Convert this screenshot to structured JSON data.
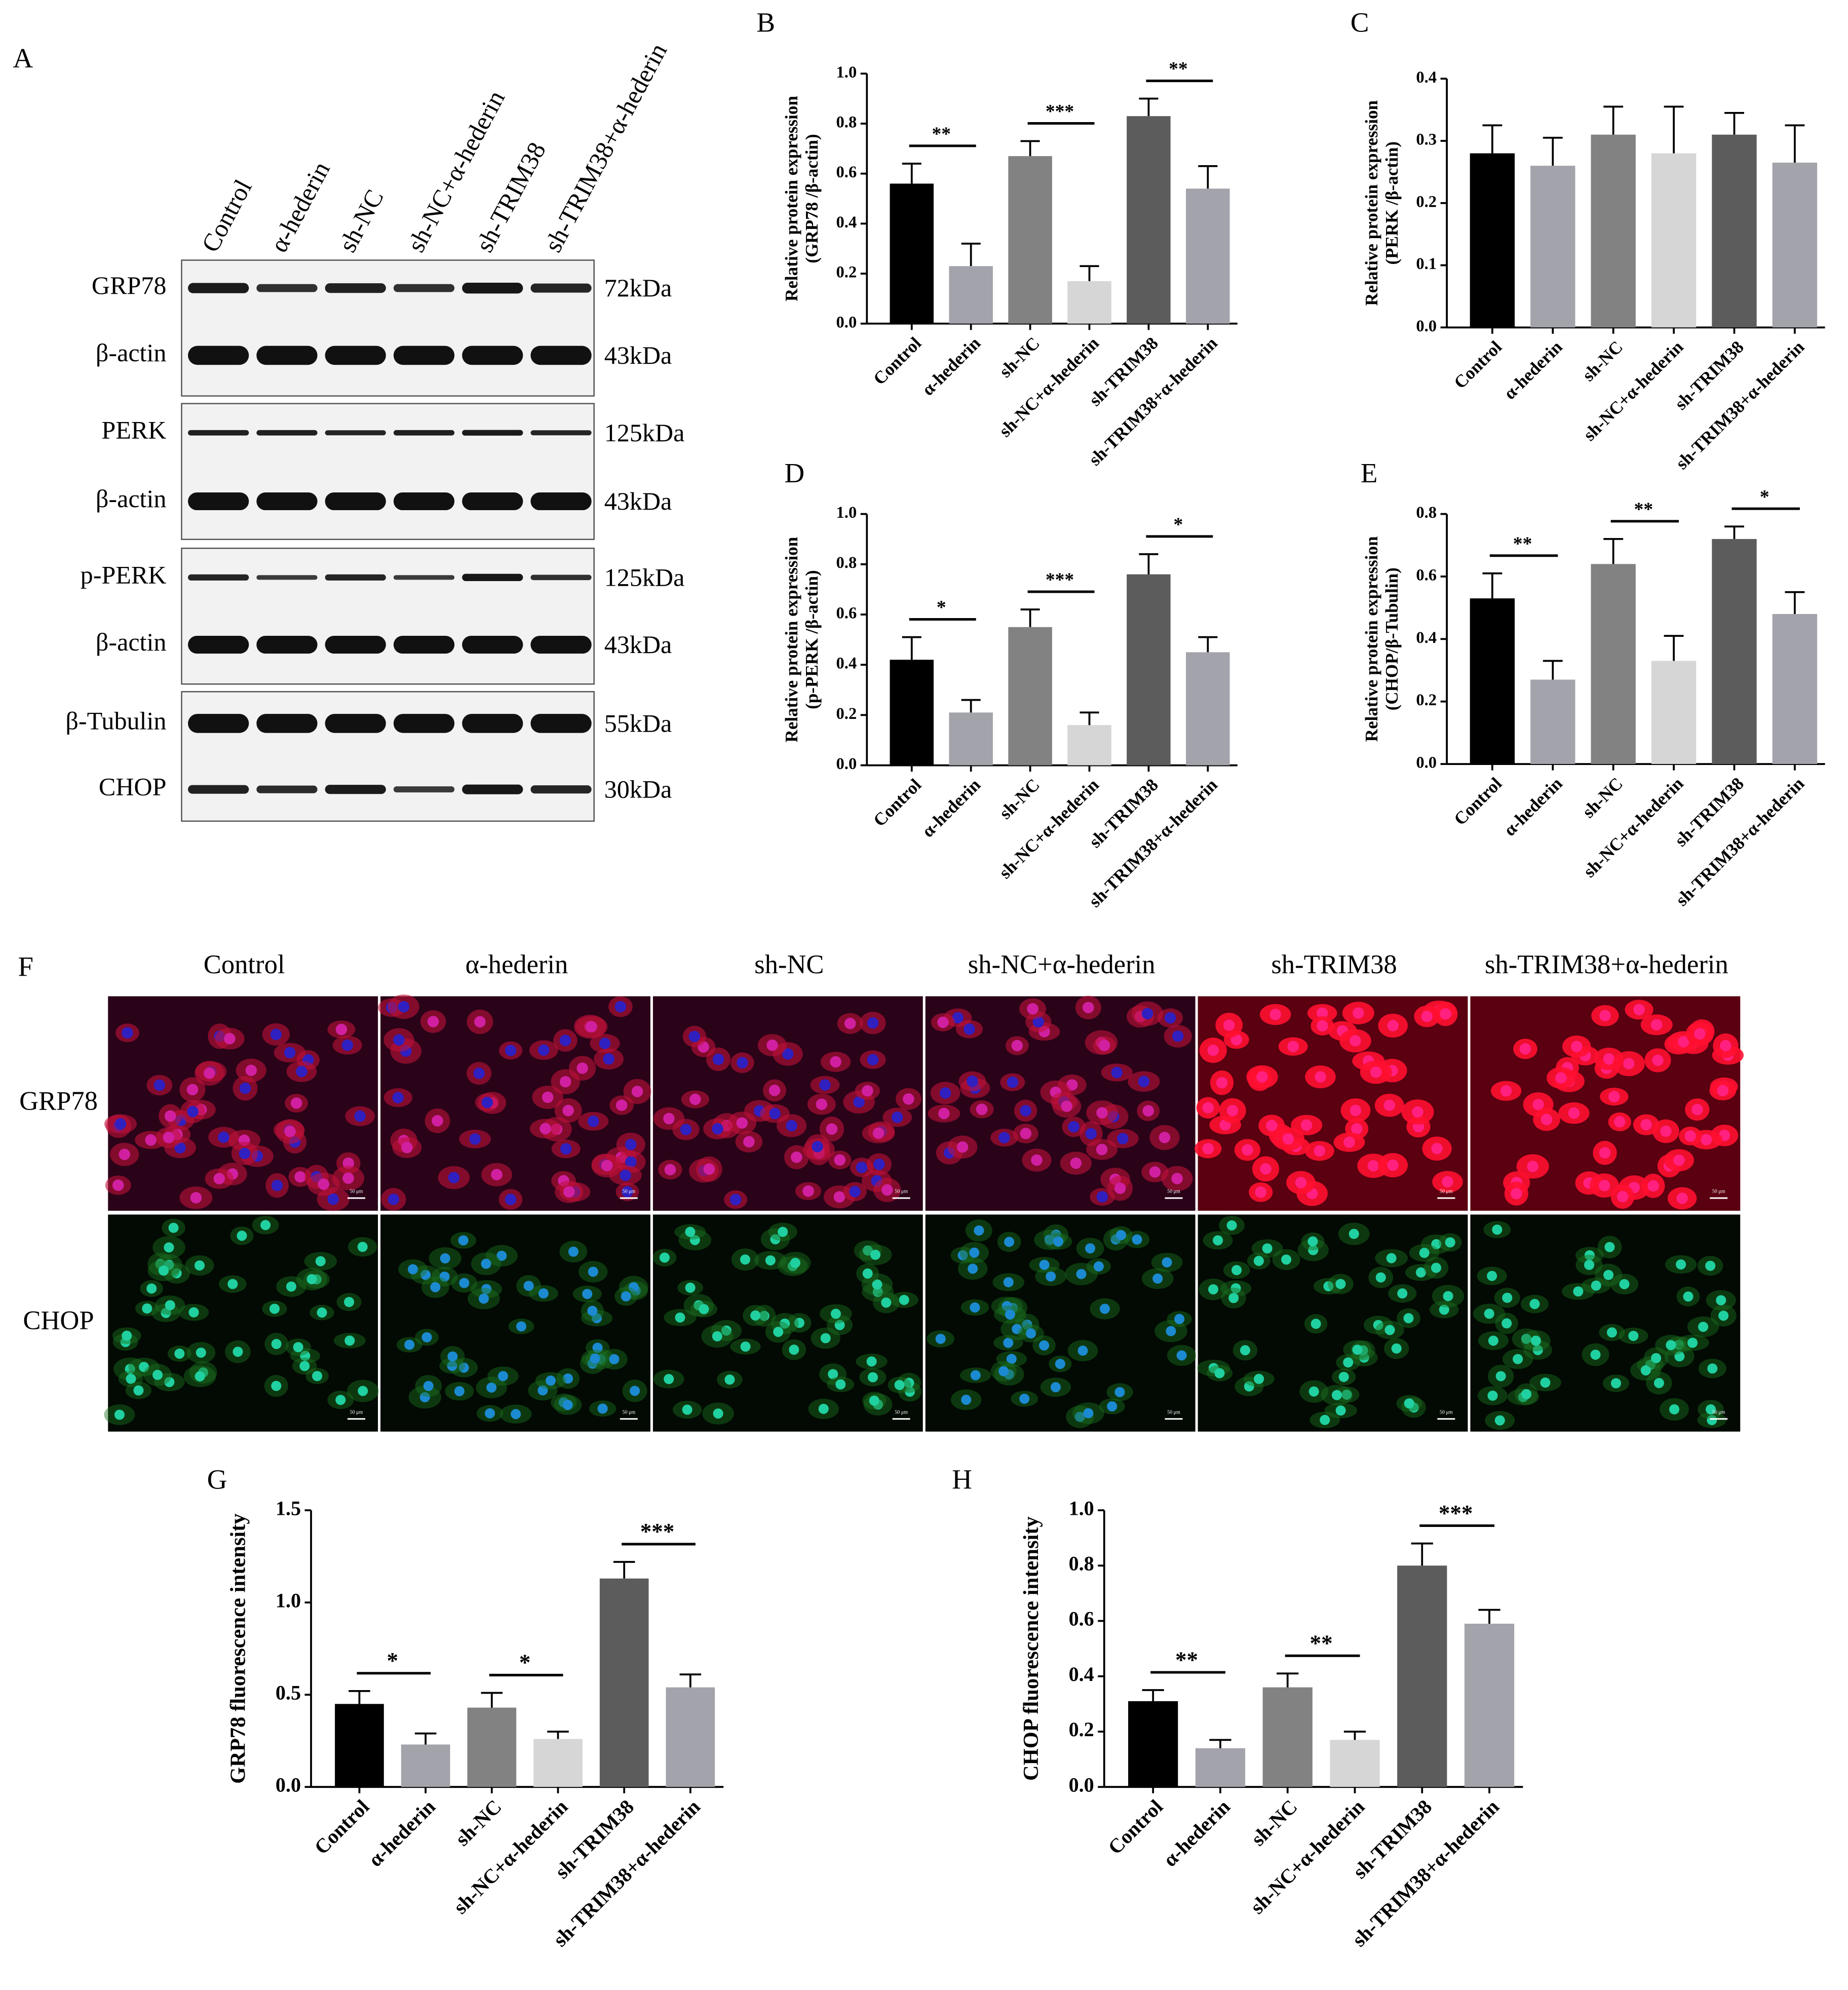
{
  "blot": {
    "label": "A",
    "lanes": [
      "Control",
      "α-hederin",
      "sh-NC",
      "sh-NC+α-hederin",
      "sh-TRIM38",
      "sh-TRIM38+α-hederin"
    ],
    "rows": [
      {
        "protein": "GRP78",
        "size": "72kDa"
      },
      {
        "protein": "β-actin",
        "size": "43kDa"
      },
      {
        "protein": "PERK",
        "size": "125kDa"
      },
      {
        "protein": "β-actin",
        "size": "43kDa"
      },
      {
        "protein": "p-PERK",
        "size": "125kDa"
      },
      {
        "protein": "β-actin",
        "size": "43kDa"
      },
      {
        "protein": "β-Tubulin",
        "size": "55kDa"
      },
      {
        "protein": "CHOP",
        "size": "30kDa"
      }
    ]
  },
  "micrographs": {
    "label": "F",
    "columns": [
      "Control",
      "α-hederin",
      "sh-NC",
      "sh-NC+α-hederin",
      "sh-TRIM38",
      "sh-TRIM38+α-hederin"
    ],
    "rows": [
      "GRP78",
      "CHOP"
    ],
    "scale_bar": "50 μm"
  },
  "chart_data": [
    {
      "type": "bar",
      "label": "B",
      "ylabel": [
        "Relative protein expression",
        "(GRP78 /β-actin)"
      ],
      "categories": [
        "Control",
        "α-hederin",
        "sh-NC",
        "sh-NC+α-hederin",
        "sh-TRIM38",
        "sh-TRIM38+α-hederin"
      ],
      "values": [
        0.56,
        0.23,
        0.67,
        0.17,
        0.83,
        0.54
      ],
      "errors": [
        0.08,
        0.09,
        0.06,
        0.06,
        0.07,
        0.09
      ],
      "colors": [
        "#000000",
        "#a3a3ab",
        "#828282",
        "#d6d6d6",
        "#5c5c5c",
        "#a3a3ab"
      ],
      "ylim": [
        0,
        1
      ],
      "yticks": [
        {
          "value": 0,
          "label": "0.0"
        },
        {
          "value": 0.2,
          "label": "0.2"
        },
        {
          "value": 0.4,
          "label": "0.4"
        },
        {
          "value": 0.6,
          "label": "0.6"
        },
        {
          "value": 0.8,
          "label": "0.8"
        },
        {
          "value": 1,
          "label": "1.0"
        }
      ],
      "significance": [
        "**",
        "***",
        "**"
      ]
    },
    {
      "type": "bar",
      "label": "C",
      "ylabel": [
        "Relative protein expression",
        "(PERK /β-actin)"
      ],
      "categories": [
        "Control",
        "α-hederin",
        "sh-NC",
        "sh-NC+α-hederin",
        "sh-TRIM38",
        "sh-TRIM38+α-hederin"
      ],
      "values": [
        0.28,
        0.26,
        0.31,
        0.28,
        0.31,
        0.265
      ],
      "errors": [
        0.045,
        0.045,
        0.045,
        0.075,
        0.035,
        0.06
      ],
      "colors": [
        "#000000",
        "#a3a3ab",
        "#828282",
        "#d6d6d6",
        "#5c5c5c",
        "#a3a3ab"
      ],
      "ylim": [
        0,
        0.4
      ],
      "yticks": [
        {
          "value": 0,
          "label": "0.0"
        },
        {
          "value": 0.1,
          "label": "0.1"
        },
        {
          "value": 0.2,
          "label": "0.2"
        },
        {
          "value": 0.3,
          "label": "0.3"
        },
        {
          "value": 0.4,
          "label": "0.4"
        }
      ]
    },
    {
      "type": "bar",
      "label": "D",
      "ylabel": [
        "Relative protein expression",
        "(p-PERK /β-actin)"
      ],
      "categories": [
        "Control",
        "α-hederin",
        "sh-NC",
        "sh-NC+α-hederin",
        "sh-TRIM38",
        "sh-TRIM38+α-hederin"
      ],
      "values": [
        0.42,
        0.21,
        0.55,
        0.16,
        0.76,
        0.45
      ],
      "errors": [
        0.09,
        0.05,
        0.07,
        0.05,
        0.08,
        0.06
      ],
      "colors": [
        "#000000",
        "#a3a3ab",
        "#828282",
        "#d6d6d6",
        "#5c5c5c",
        "#a3a3ab"
      ],
      "ylim": [
        0,
        1
      ],
      "yticks": [
        {
          "value": 0,
          "label": "0.0"
        },
        {
          "value": 0.2,
          "label": "0.2"
        },
        {
          "value": 0.4,
          "label": "0.4"
        },
        {
          "value": 0.6,
          "label": "0.6"
        },
        {
          "value": 0.8,
          "label": "0.8"
        },
        {
          "value": 1,
          "label": "1.0"
        }
      ],
      "significance": [
        "*",
        "***",
        "*"
      ]
    },
    {
      "type": "bar",
      "label": "E",
      "ylabel": [
        "Relative protein expression",
        "(CHOP/β-Tubulin)"
      ],
      "categories": [
        "Control",
        "α-hederin",
        "sh-NC",
        "sh-NC+α-hederin",
        "sh-TRIM38",
        "sh-TRIM38+α-hederin"
      ],
      "values": [
        0.53,
        0.27,
        0.64,
        0.33,
        0.72,
        0.48
      ],
      "errors": [
        0.08,
        0.06,
        0.08,
        0.08,
        0.04,
        0.07
      ],
      "colors": [
        "#000000",
        "#a3a3ab",
        "#828282",
        "#d6d6d6",
        "#5c5c5c",
        "#a3a3ab"
      ],
      "ylim": [
        0,
        0.8
      ],
      "yticks": [
        {
          "value": 0,
          "label": "0.0"
        },
        {
          "value": 0.2,
          "label": "0.2"
        },
        {
          "value": 0.4,
          "label": "0.4"
        },
        {
          "value": 0.6,
          "label": "0.6"
        },
        {
          "value": 0.8,
          "label": "0.8"
        }
      ],
      "significance": [
        "**",
        "**",
        "*"
      ]
    },
    {
      "type": "bar",
      "label": "G",
      "ylabel": [
        "GRP78 fluorescence intensity"
      ],
      "categories": [
        "Control",
        "α-hederin",
        "sh-NC",
        "sh-NC+α-hederin",
        "sh-TRIM38",
        "sh-TRIM38+α-hederin"
      ],
      "values": [
        0.45,
        0.23,
        0.43,
        0.26,
        1.13,
        0.54
      ],
      "errors": [
        0.07,
        0.06,
        0.08,
        0.04,
        0.09,
        0.07
      ],
      "colors": [
        "#000000",
        "#a3a3ab",
        "#828282",
        "#d6d6d6",
        "#5c5c5c",
        "#a3a3ab"
      ],
      "ylim": [
        0,
        1.5
      ],
      "yticks": [
        {
          "value": 0,
          "label": "0.0"
        },
        {
          "value": 0.5,
          "label": "0.5"
        },
        {
          "value": 1,
          "label": "1.0"
        },
        {
          "value": 1.5,
          "label": "1.5"
        }
      ],
      "significance": [
        "*",
        "*",
        "***"
      ]
    },
    {
      "type": "bar",
      "label": "H",
      "ylabel": [
        "CHOP fluorescence intensity"
      ],
      "categories": [
        "Control",
        "α-hederin",
        "sh-NC",
        "sh-NC+α-hederin",
        "sh-TRIM38",
        "sh-TRIM38+α-hederin"
      ],
      "values": [
        0.31,
        0.14,
        0.36,
        0.17,
        0.8,
        0.59
      ],
      "errors": [
        0.04,
        0.03,
        0.05,
        0.03,
        0.08,
        0.05
      ],
      "colors": [
        "#000000",
        "#a3a3ab",
        "#828282",
        "#d6d6d6",
        "#5c5c5c",
        "#a3a3ab"
      ],
      "ylim": [
        0,
        1
      ],
      "yticks": [
        {
          "value": 0,
          "label": "0.0"
        },
        {
          "value": 0.2,
          "label": "0.2"
        },
        {
          "value": 0.4,
          "label": "0.4"
        },
        {
          "value": 0.6,
          "label": "0.6"
        },
        {
          "value": 0.8,
          "label": "0.8"
        },
        {
          "value": 1,
          "label": "1.0"
        }
      ],
      "significance": [
        "**",
        "**",
        "***"
      ]
    }
  ]
}
